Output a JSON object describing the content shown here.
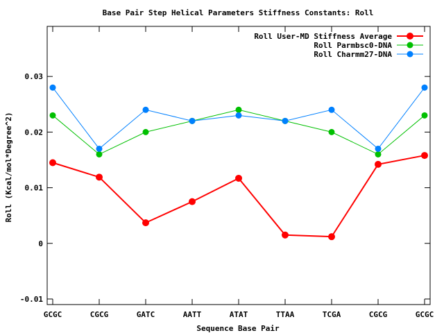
{
  "chart_data": {
    "type": "line",
    "title": "Base Pair Step Helical Parameters Stiffness Constants: Roll",
    "xlabel": "Sequence Base Pair",
    "ylabel": "Roll (Kcal/mol*Degree^2)",
    "categories": [
      "GCGC",
      "CGCG",
      "GATC",
      "AATT",
      "ATAT",
      "TTAA",
      "TCGA",
      "CGCG",
      "GCGC"
    ],
    "ylim": [
      -0.011,
      0.039
    ],
    "yticks": [
      -0.01,
      0,
      0.01,
      0.02,
      0.03
    ],
    "ytick_labels": [
      "-0.01",
      "0",
      "0.01",
      "0.02",
      "0.03"
    ],
    "legend_position": "top-right",
    "series": [
      {
        "name": "Roll User-MD Stiffness Average",
        "color": "#ff0000",
        "values": [
          0.0145,
          0.0119,
          0.0037,
          0.0075,
          0.0117,
          0.0015,
          0.0012,
          0.0142,
          0.0158
        ]
      },
      {
        "name": "Roll Parmbsc0-DNA",
        "color": "#00c000",
        "values": [
          0.023,
          0.016,
          0.02,
          0.022,
          0.024,
          0.022,
          0.02,
          0.016,
          0.023
        ]
      },
      {
        "name": "Roll Charmm27-DNA",
        "color": "#0080ff",
        "values": [
          0.028,
          0.017,
          0.024,
          0.022,
          0.023,
          0.022,
          0.024,
          0.017,
          0.028
        ]
      }
    ]
  }
}
